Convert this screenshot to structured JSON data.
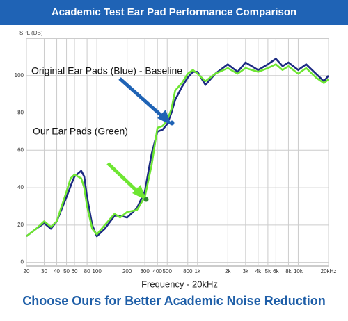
{
  "chart_data": {
    "type": "line",
    "title": "Academic Test Ear Pad Performance Comparison",
    "y_label": "SPL (DB)",
    "x_label": "Frequency - 20kHz",
    "footer": "Choose Ours for Better Academic Noise Reduction",
    "log_x": true,
    "grid": true,
    "x": [
      20,
      25,
      30,
      35,
      40,
      50,
      55,
      60,
      70,
      75,
      80,
      90,
      100,
      120,
      150,
      170,
      200,
      250,
      300,
      350,
      400,
      450,
      500,
      550,
      600,
      700,
      800,
      900,
      1000,
      1200,
      1500,
      2000,
      2500,
      3000,
      4000,
      5000,
      6000,
      7000,
      8000,
      10000,
      12000,
      15000,
      18000,
      20000
    ],
    "series": [
      {
        "name": "Original Ear Pads (Blue) - Baseline",
        "color": "#1c2a82",
        "values": [
          14,
          18,
          21,
          18,
          22,
          35,
          41,
          46,
          49,
          46,
          35,
          20,
          14,
          18,
          25,
          25,
          24,
          29,
          38,
          58,
          70,
          71,
          74,
          80,
          87,
          94,
          99,
          102,
          102,
          95,
          101,
          106,
          102,
          107,
          103,
          106,
          109,
          105,
          107,
          103,
          106,
          101,
          97,
          100
        ]
      },
      {
        "name": "Our Ear Pads (Green)",
        "color": "#6ee632",
        "values": [
          14,
          18,
          22,
          19,
          22,
          38,
          45,
          47,
          45,
          40,
          30,
          18,
          15,
          20,
          26,
          24,
          27,
          28,
          35,
          52,
          72,
          73,
          76,
          82,
          92,
          96,
          101,
          103,
          101,
          97,
          101,
          104,
          101,
          104,
          102,
          104,
          106,
          103,
          105,
          101,
          104,
          99,
          96,
          98
        ]
      }
    ],
    "xlim": [
      20,
      20000
    ],
    "ylim": [
      -2,
      120
    ],
    "yticks": [
      0,
      20,
      40,
      60,
      80,
      100
    ],
    "xticks": [
      20,
      30,
      40,
      50,
      60,
      80,
      100,
      200,
      300,
      400,
      500,
      800,
      {
        "value": 1000,
        "label": "1k"
      },
      {
        "value": 2000,
        "label": "2k"
      },
      {
        "value": 3000,
        "label": "3k"
      },
      {
        "value": 4000,
        "label": "4k"
      },
      {
        "value": 5000,
        "label": "5k"
      },
      {
        "value": 6000,
        "label": "6k"
      },
      {
        "value": 8000,
        "label": "8k"
      },
      {
        "value": 10000,
        "label": "10k"
      },
      {
        "value": 20000,
        "label": "20kHz"
      }
    ]
  }
}
